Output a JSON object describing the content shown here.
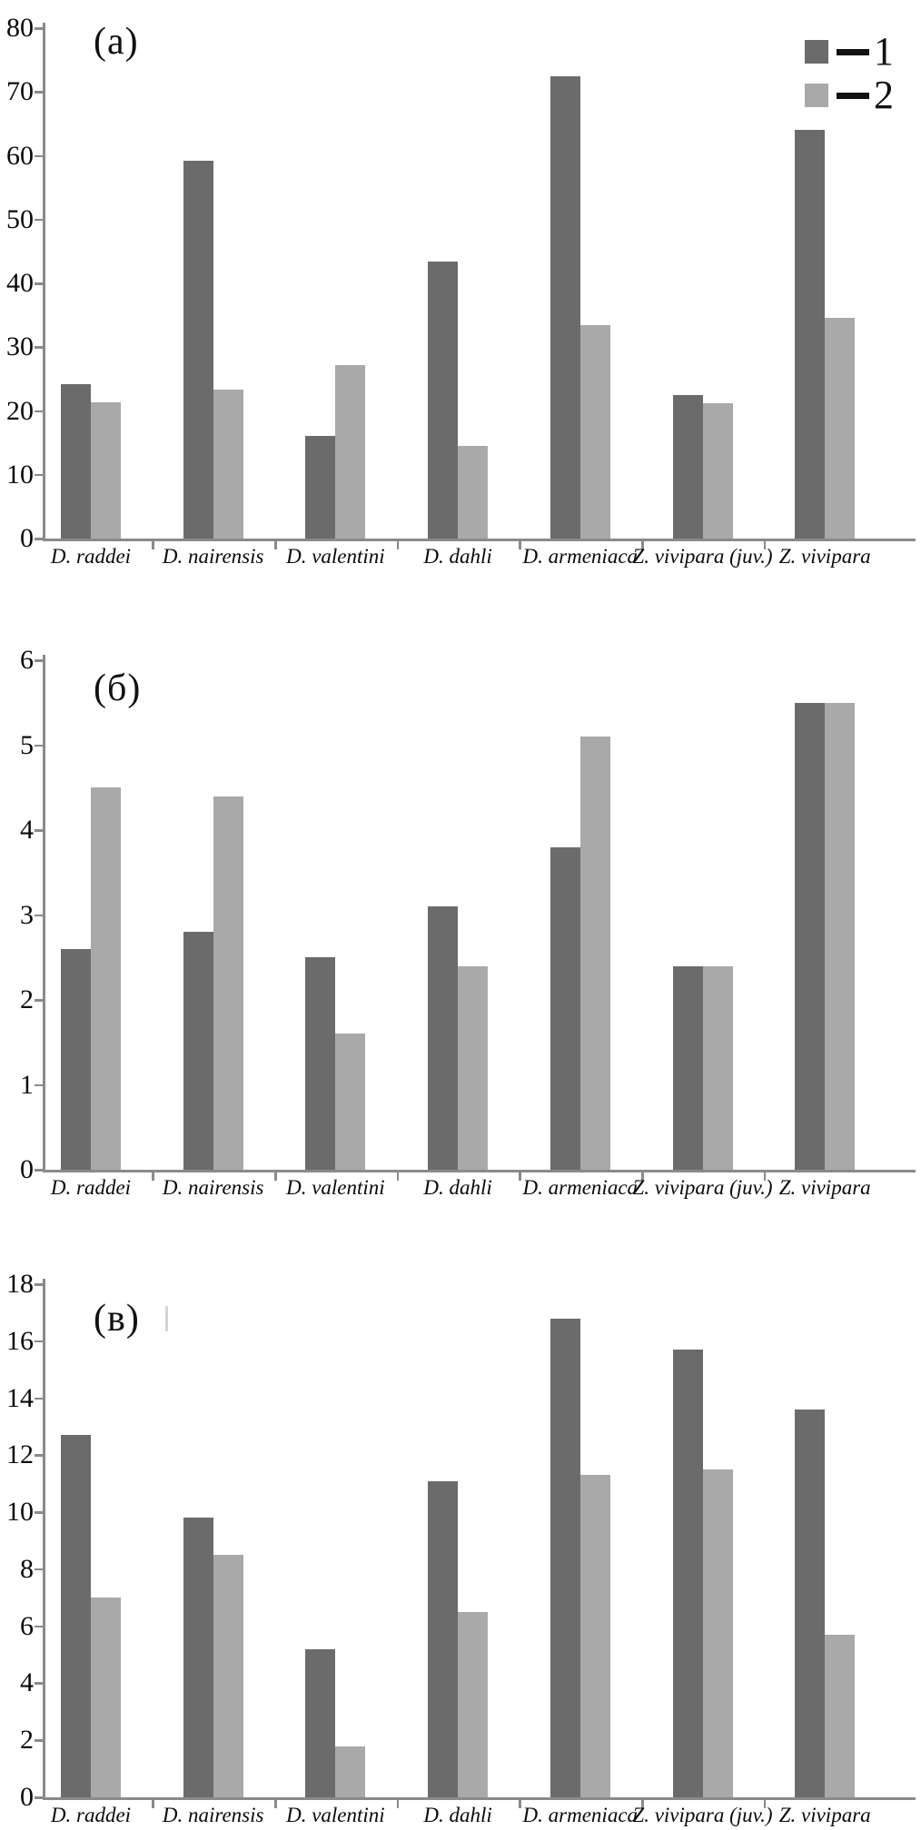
{
  "figure": {
    "legend": {
      "items": [
        {
          "label": "1",
          "color": "#6b6b6b"
        },
        {
          "label": "2",
          "color": "#a9a9a9"
        }
      ]
    }
  },
  "colors": {
    "series1": "#6b6b6b",
    "series2": "#a9a9a9",
    "axis": "#8a8a8a",
    "text": "#0a0a0a"
  },
  "chart_data": [
    {
      "type": "bar",
      "panel_label": "(а)",
      "categories": [
        "D. raddei",
        "D. nairensis",
        "D. valentini",
        "D. dahli",
        "D. armeniaca",
        "Z. vivipara (juv.)",
        "Z. vivipara"
      ],
      "series": [
        {
          "name": "1",
          "values": [
            24.2,
            59.2,
            16.1,
            43.4,
            72.4,
            22.5,
            64.0
          ]
        },
        {
          "name": "2",
          "values": [
            21.3,
            23.3,
            27.2,
            14.5,
            33.5,
            21.2,
            34.6
          ]
        }
      ],
      "ylim": [
        0,
        80
      ],
      "ytick_step": 10,
      "grid": false,
      "legend_position": "top-right"
    },
    {
      "type": "bar",
      "panel_label": "(б)",
      "categories": [
        "D. raddei",
        "D. nairensis",
        "D. valentini",
        "D. dahli",
        "D. armeniaca",
        "Z. vivipara (juv.)",
        "Z. vivipara"
      ],
      "series": [
        {
          "name": "1",
          "values": [
            2.6,
            2.8,
            2.5,
            3.1,
            3.8,
            2.4,
            5.5
          ]
        },
        {
          "name": "2",
          "values": [
            4.5,
            4.4,
            1.6,
            2.4,
            5.1,
            2.4,
            5.5
          ]
        }
      ],
      "ylim": [
        0,
        6
      ],
      "ytick_step": 1,
      "grid": false,
      "legend_position": "none"
    },
    {
      "type": "bar",
      "panel_label": "(в)",
      "categories": [
        "D. raddei",
        "D. nairensis",
        "D. valentini",
        "D. dahli",
        "D. armeniaca",
        "Z. vivipara (juv.)",
        "Z. vivipara"
      ],
      "series": [
        {
          "name": "1",
          "values": [
            12.7,
            9.8,
            5.2,
            11.1,
            16.8,
            15.7,
            13.6
          ]
        },
        {
          "name": "2",
          "values": [
            7.0,
            8.5,
            1.8,
            6.5,
            11.3,
            11.5,
            5.7
          ]
        }
      ],
      "ylim": [
        0,
        18
      ],
      "ytick_step": 2,
      "grid": false,
      "legend_position": "none"
    }
  ]
}
